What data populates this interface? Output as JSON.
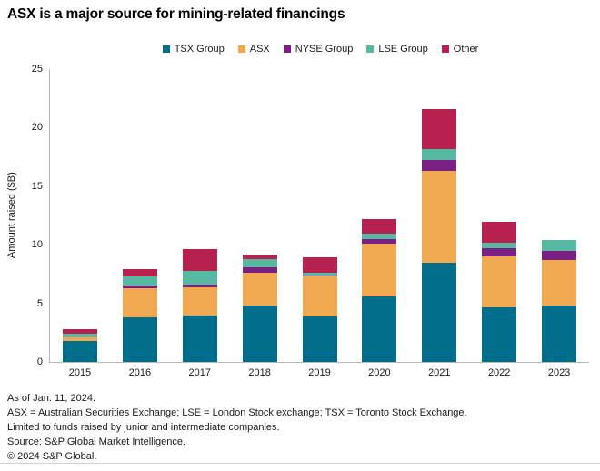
{
  "title": "ASX is a major source for mining-related financings",
  "colors": {
    "tsx_group": "#006e8a",
    "asx": "#f0a851",
    "nyse_group": "#7a2082",
    "lse_group": "#57b9a2",
    "other": "#b72150",
    "axis": "#b9b9b9",
    "text": "#1a1a1a"
  },
  "chart_data": {
    "type": "bar",
    "stacked": true,
    "title": "ASX is a major source for mining-related financings",
    "xlabel": "",
    "ylabel": "Amount raised ($B)",
    "ylim": [
      0,
      25
    ],
    "yticks": [
      0,
      5,
      10,
      15,
      20,
      25
    ],
    "grid": false,
    "legend_position": "top",
    "categories": [
      "2015",
      "2016",
      "2017",
      "2018",
      "2019",
      "2020",
      "2021",
      "2022",
      "2023"
    ],
    "series": [
      {
        "name": "TSX Group",
        "color": "#006e8a",
        "values": [
          1.8,
          3.8,
          4.0,
          4.8,
          3.85,
          5.6,
          8.5,
          4.7,
          4.8
        ]
      },
      {
        "name": "ASX",
        "color": "#f0a851",
        "values": [
          0.3,
          2.5,
          2.4,
          2.8,
          3.45,
          4.5,
          7.8,
          4.3,
          3.9
        ]
      },
      {
        "name": "NYSE Group",
        "color": "#7a2082",
        "values": [
          0.0,
          0.2,
          0.2,
          0.5,
          0.1,
          0.4,
          0.9,
          0.7,
          0.8
        ]
      },
      {
        "name": "LSE Group",
        "color": "#57b9a2",
        "values": [
          0.3,
          0.8,
          1.2,
          0.65,
          0.2,
          0.45,
          1.0,
          0.5,
          0.9
        ]
      },
      {
        "name": "Other",
        "color": "#b72150",
        "values": [
          0.4,
          0.6,
          1.8,
          0.45,
          1.3,
          1.2,
          3.4,
          1.8,
          0.0
        ]
      }
    ]
  },
  "footnotes": [
    "As of Jan. 11, 2024.",
    "ASX = Australian Securities Exchange; LSE = London Stock exchange; TSX = Toronto Stock Exchange.",
    "Limited to funds raised by junior and intermediate companies.",
    "Source: S&P Global Market Intelligence.",
    "© 2024 S&P Global."
  ]
}
